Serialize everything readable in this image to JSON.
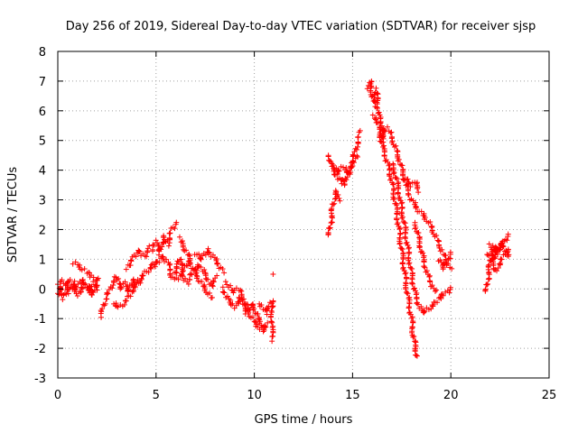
{
  "chart_data": {
    "type": "scatter",
    "title": "Day 256 of 2019, Sidereal Day-to-day VTEC variation (SDTVAR) for receiver sjsp",
    "xlabel": "GPS time / hours",
    "ylabel": "SDTVAR / TECUs",
    "xlim": [
      0,
      25
    ],
    "ylim": [
      -3,
      8
    ],
    "x_ticks": [
      0,
      5,
      10,
      15,
      20,
      25
    ],
    "x_tick_labels": [
      "0",
      "5",
      "10",
      "15",
      "20",
      "25"
    ],
    "y_ticks": [
      -3,
      -2,
      -1,
      0,
      1,
      2,
      3,
      4,
      5,
      6,
      7,
      8
    ],
    "y_tick_labels": [
      "-3",
      "-2",
      "-1",
      "0",
      "1",
      "2",
      "3",
      "4",
      "5",
      "6",
      "7",
      "8"
    ],
    "grid": true,
    "marker": "+",
    "series": [
      {
        "name": "SDTVAR",
        "color": "#ff0000",
        "segments": [
          [
            [
              0.0,
              -0.2
            ],
            [
              0.2,
              0.3
            ],
            [
              0.4,
              0.1
            ],
            [
              0.6,
              -0.1
            ],
            [
              0.8,
              0.2
            ],
            [
              1.0,
              -0.2
            ],
            [
              1.2,
              0.0
            ],
            [
              1.4,
              0.1
            ],
            [
              1.6,
              -0.1
            ],
            [
              1.8,
              0.2
            ],
            [
              2.0,
              0.0
            ]
          ],
          [
            [
              0.0,
              0.1
            ],
            [
              0.3,
              -0.3
            ],
            [
              0.6,
              0.3
            ],
            [
              0.9,
              0.0
            ],
            [
              1.2,
              0.3
            ],
            [
              1.5,
              0.1
            ],
            [
              1.8,
              -0.2
            ],
            [
              2.0,
              0.3
            ]
          ],
          [
            [
              0.8,
              0.9
            ],
            [
              1.2,
              0.7
            ],
            [
              1.6,
              0.5
            ],
            [
              2.0,
              0.3
            ]
          ],
          [
            [
              2.2,
              -0.9
            ],
            [
              2.4,
              -0.4
            ],
            [
              2.6,
              -0.1
            ],
            [
              2.8,
              0.2
            ],
            [
              3.0,
              0.4
            ],
            [
              3.2,
              0.0
            ],
            [
              3.4,
              0.2
            ],
            [
              3.6,
              -0.1
            ],
            [
              3.8,
              0.3
            ],
            [
              4.0,
              0.1
            ],
            [
              4.2,
              0.3
            ]
          ],
          [
            [
              2.8,
              -0.5
            ],
            [
              3.2,
              -0.6
            ],
            [
              3.6,
              -0.3
            ],
            [
              4.0,
              0.2
            ],
            [
              4.4,
              0.5
            ],
            [
              4.7,
              0.7
            ],
            [
              5.0,
              0.9
            ]
          ],
          [
            [
              3.5,
              0.7
            ],
            [
              3.8,
              1.0
            ],
            [
              4.1,
              1.3
            ],
            [
              4.4,
              1.1
            ],
            [
              4.7,
              1.4
            ]
          ],
          [
            [
              4.8,
              1.3
            ],
            [
              5.0,
              1.6
            ],
            [
              5.2,
              1.2
            ],
            [
              5.4,
              1.8
            ],
            [
              5.6,
              1.5
            ],
            [
              5.8,
              2.0
            ],
            [
              6.0,
              2.2
            ]
          ],
          [
            [
              5.0,
              0.8
            ],
            [
              5.3,
              1.1
            ],
            [
              5.6,
              0.9
            ],
            [
              5.8,
              0.4
            ],
            [
              6.0,
              0.6
            ],
            [
              6.2,
              1.0
            ],
            [
              6.4,
              0.6
            ],
            [
              6.6,
              0.9
            ]
          ],
          [
            [
              6.2,
              1.7
            ],
            [
              6.4,
              1.4
            ],
            [
              6.6,
              1.2
            ],
            [
              6.8,
              0.8
            ],
            [
              7.0,
              0.5
            ],
            [
              7.2,
              0.3
            ],
            [
              7.4,
              0.1
            ],
            [
              7.6,
              -0.1
            ],
            [
              7.8,
              -0.3
            ]
          ],
          [
            [
              6.0,
              0.3
            ],
            [
              6.3,
              0.5
            ],
            [
              6.6,
              0.2
            ],
            [
              6.9,
              0.6
            ],
            [
              7.2,
              0.8
            ],
            [
              7.5,
              0.5
            ],
            [
              7.8,
              0.1
            ],
            [
              8.1,
              0.4
            ]
          ],
          [
            [
              7.0,
              1.2
            ],
            [
              7.3,
              1.0
            ],
            [
              7.6,
              1.3
            ],
            [
              7.9,
              1.1
            ],
            [
              8.2,
              0.8
            ],
            [
              8.4,
              0.6
            ]
          ],
          [
            [
              8.4,
              0.0
            ],
            [
              8.7,
              -0.4
            ],
            [
              9.0,
              -0.6
            ],
            [
              9.3,
              -0.3
            ],
            [
              9.6,
              -0.8
            ],
            [
              9.9,
              -0.5
            ],
            [
              10.2,
              -1.0
            ],
            [
              10.5,
              -1.3
            ]
          ],
          [
            [
              8.6,
              0.2
            ],
            [
              8.9,
              -0.1
            ],
            [
              9.2,
              0.0
            ],
            [
              9.5,
              -0.4
            ],
            [
              9.8,
              -0.9
            ],
            [
              10.1,
              -1.2
            ],
            [
              10.4,
              -1.4
            ],
            [
              10.7,
              -1.2
            ]
          ],
          [
            [
              10.3,
              -0.5
            ],
            [
              10.6,
              -0.8
            ],
            [
              10.9,
              -0.4
            ],
            [
              10.9,
              -1.5
            ],
            [
              10.95,
              -1.7
            ]
          ],
          [
            [
              10.9,
              0.5
            ]
          ],
          [
            [
              13.8,
              1.8
            ],
            [
              13.9,
              2.3
            ],
            [
              14.0,
              2.8
            ],
            [
              14.1,
              3.1
            ],
            [
              14.2,
              3.3
            ],
            [
              14.3,
              3.0
            ]
          ],
          [
            [
              13.8,
              4.5
            ],
            [
              14.0,
              4.0
            ],
            [
              14.2,
              3.8
            ],
            [
              14.4,
              3.6
            ],
            [
              14.6,
              3.7
            ]
          ],
          [
            [
              14.0,
              4.2
            ],
            [
              14.2,
              3.9
            ],
            [
              14.5,
              4.1
            ],
            [
              14.8,
              3.9
            ],
            [
              15.0,
              4.3
            ],
            [
              15.2,
              4.8
            ],
            [
              15.4,
              5.3
            ]
          ],
          [
            [
              14.6,
              3.5
            ],
            [
              14.8,
              3.9
            ],
            [
              15.0,
              4.2
            ],
            [
              15.2,
              4.5
            ]
          ],
          [
            [
              15.8,
              6.8
            ],
            [
              15.9,
              7.0
            ],
            [
              16.0,
              6.5
            ],
            [
              16.1,
              6.2
            ],
            [
              16.2,
              6.7
            ],
            [
              16.3,
              6.1
            ],
            [
              16.4,
              5.6
            ],
            [
              16.5,
              5.0
            ],
            [
              16.6,
              5.4
            ]
          ],
          [
            [
              16.0,
              5.8
            ],
            [
              16.2,
              5.7
            ],
            [
              16.4,
              5.5
            ],
            [
              16.6,
              5.3
            ],
            [
              16.8,
              5.4
            ],
            [
              17.0,
              5.1
            ],
            [
              17.2,
              4.7
            ],
            [
              17.4,
              4.3
            ],
            [
              17.6,
              3.8
            ],
            [
              17.8,
              3.3
            ],
            [
              18.0,
              3.0
            ],
            [
              18.2,
              2.8
            ],
            [
              18.4,
              2.6
            ],
            [
              18.6,
              2.5
            ],
            [
              18.8,
              2.3
            ],
            [
              19.0,
              2.1
            ],
            [
              19.2,
              1.8
            ],
            [
              19.4,
              1.5
            ],
            [
              19.6,
              1.2
            ],
            [
              19.8,
              0.9
            ],
            [
              20.0,
              0.7
            ]
          ],
          [
            [
              16.4,
              5.2
            ],
            [
              16.6,
              4.6
            ],
            [
              16.8,
              4.2
            ],
            [
              17.0,
              3.6
            ],
            [
              17.2,
              2.8
            ],
            [
              17.4,
              1.8
            ],
            [
              17.6,
              0.8
            ],
            [
              17.8,
              -0.2
            ],
            [
              18.0,
              -1.0
            ],
            [
              18.1,
              -1.6
            ],
            [
              18.2,
              -2.0
            ],
            [
              18.3,
              -2.3
            ]
          ],
          [
            [
              17.0,
              4.2
            ],
            [
              17.2,
              3.8
            ],
            [
              17.4,
              3.1
            ],
            [
              17.6,
              2.3
            ],
            [
              17.8,
              1.4
            ],
            [
              18.0,
              0.5
            ],
            [
              18.2,
              -0.2
            ],
            [
              18.4,
              -0.6
            ],
            [
              18.6,
              -0.8
            ],
            [
              18.8,
              -0.7
            ],
            [
              19.0,
              -0.6
            ],
            [
              19.2,
              -0.5
            ],
            [
              19.4,
              -0.3
            ],
            [
              19.6,
              -0.2
            ],
            [
              19.8,
              -0.1
            ],
            [
              20.0,
              0.0
            ]
          ],
          [
            [
              17.6,
              3.8
            ],
            [
              17.8,
              3.6
            ],
            [
              18.0,
              3.5
            ],
            [
              18.2,
              3.6
            ],
            [
              18.4,
              3.3
            ]
          ],
          [
            [
              18.2,
              2.2
            ],
            [
              18.4,
              1.6
            ],
            [
              18.6,
              1.0
            ],
            [
              18.8,
              0.5
            ],
            [
              19.0,
              0.2
            ],
            [
              19.2,
              -0.1
            ]
          ],
          [
            [
              19.4,
              1.0
            ],
            [
              19.6,
              0.7
            ],
            [
              19.8,
              0.9
            ],
            [
              20.0,
              1.2
            ]
          ],
          [
            [
              21.8,
              -0.1
            ],
            [
              21.9,
              0.4
            ],
            [
              22.0,
              0.9
            ],
            [
              22.1,
              1.3
            ],
            [
              22.2,
              1.0
            ],
            [
              22.3,
              1.4
            ],
            [
              22.4,
              1.2
            ],
            [
              22.5,
              1.5
            ],
            [
              22.6,
              1.4
            ],
            [
              22.8,
              1.7
            ],
            [
              22.9,
              1.8
            ]
          ],
          [
            [
              21.9,
              1.2
            ],
            [
              22.1,
              0.9
            ],
            [
              22.3,
              0.6
            ],
            [
              22.5,
              0.9
            ],
            [
              22.7,
              1.1
            ],
            [
              22.9,
              1.3
            ]
          ],
          [
            [
              22.0,
              1.5
            ],
            [
              22.3,
              1.2
            ],
            [
              22.6,
              1.6
            ],
            [
              22.9,
              1.1
            ]
          ]
        ]
      }
    ]
  }
}
